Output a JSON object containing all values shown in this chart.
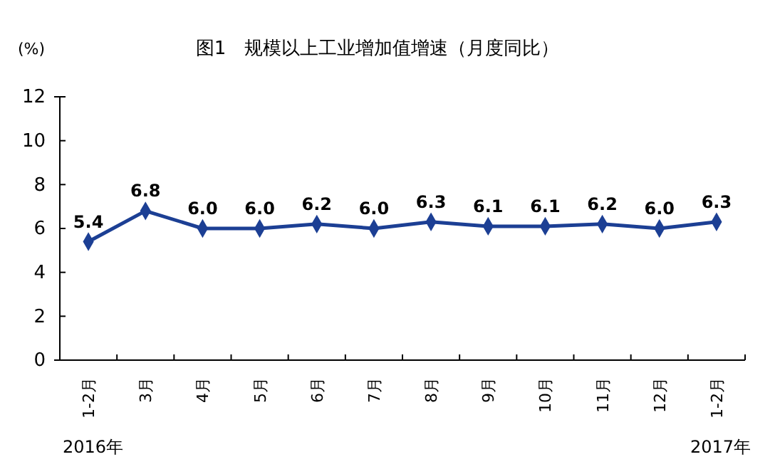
{
  "chart_data": {
    "type": "line",
    "title": "图1　规模以上工业增加值增速（月度同比）",
    "ylabel": "(%)",
    "categories": [
      "1-2月",
      "3月",
      "4月",
      "5月",
      "6月",
      "7月",
      "8月",
      "9月",
      "10月",
      "11月",
      "12月",
      "1-2月"
    ],
    "values": [
      5.4,
      6.8,
      6.0,
      6.0,
      6.2,
      6.0,
      6.3,
      6.1,
      6.1,
      6.2,
      6.0,
      6.3
    ],
    "value_labels": [
      "5.4",
      "6.8",
      "6.0",
      "6.0",
      "6.2",
      "6.0",
      "6.3",
      "6.1",
      "6.1",
      "6.2",
      "6.0",
      "6.3"
    ],
    "color": "#1c3f94",
    "marker": "diamond",
    "line_style": "solid",
    "ylim": [
      0,
      12
    ],
    "yticks": [
      0,
      2,
      4,
      6,
      8,
      10,
      12
    ],
    "annotations": [
      "2016年",
      "2017年"
    ]
  }
}
